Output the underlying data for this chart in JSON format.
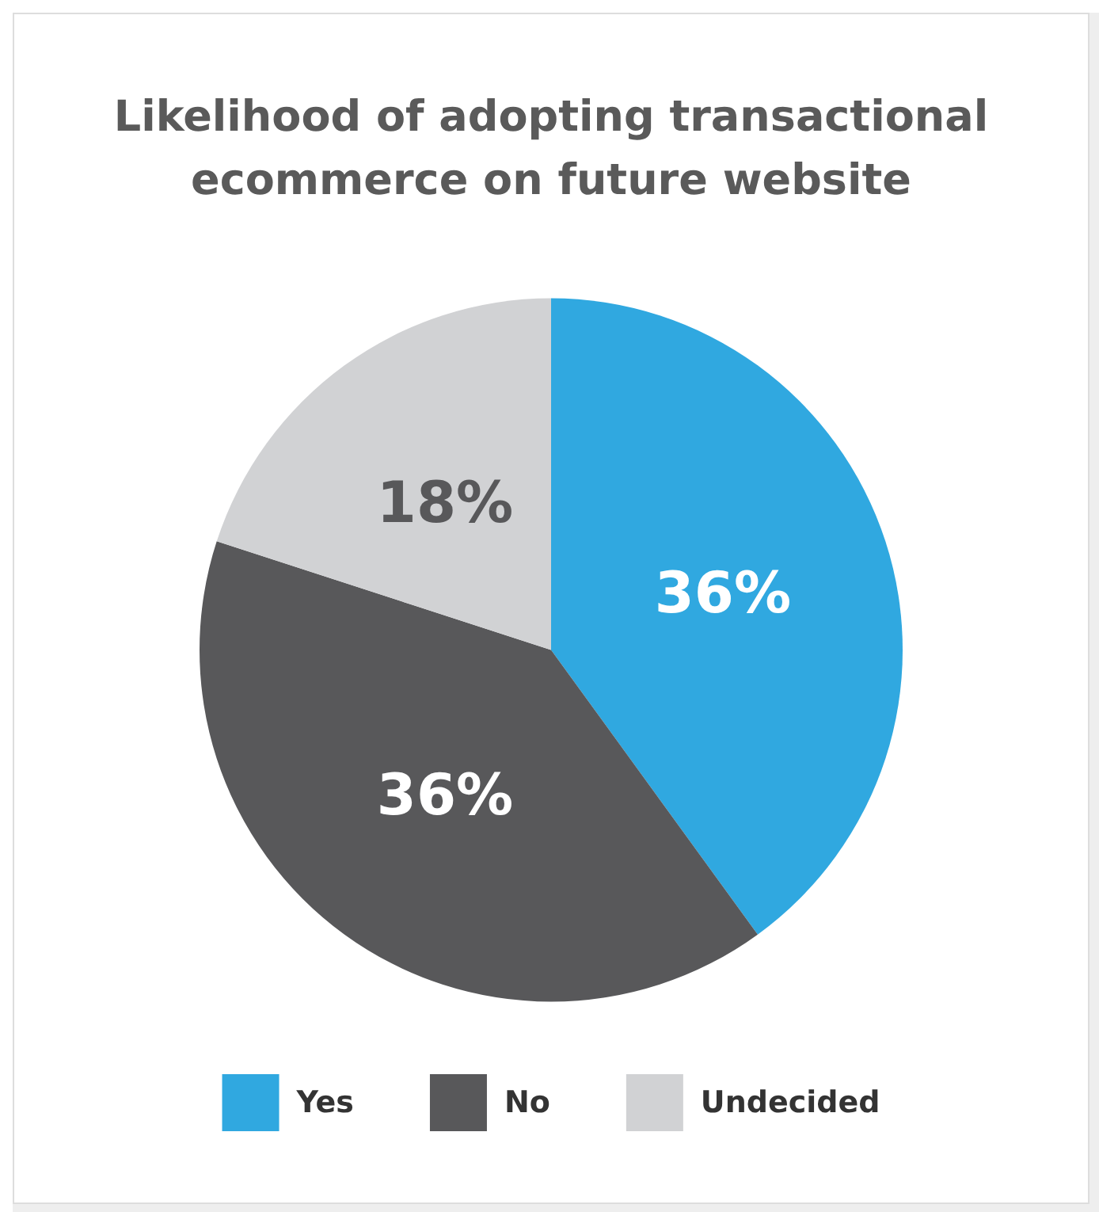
{
  "chart_data": {
    "type": "pie",
    "title": "Likelihood of adopting transactional\necommerce on future website",
    "categories": [
      "Yes",
      "No",
      "Undecided"
    ],
    "values": [
      36,
      36,
      18
    ],
    "value_labels": [
      "36%",
      "36%",
      "18%"
    ],
    "colors": [
      "#30a8e0",
      "#58585a",
      "#d1d2d4"
    ],
    "legend": "bottom"
  }
}
